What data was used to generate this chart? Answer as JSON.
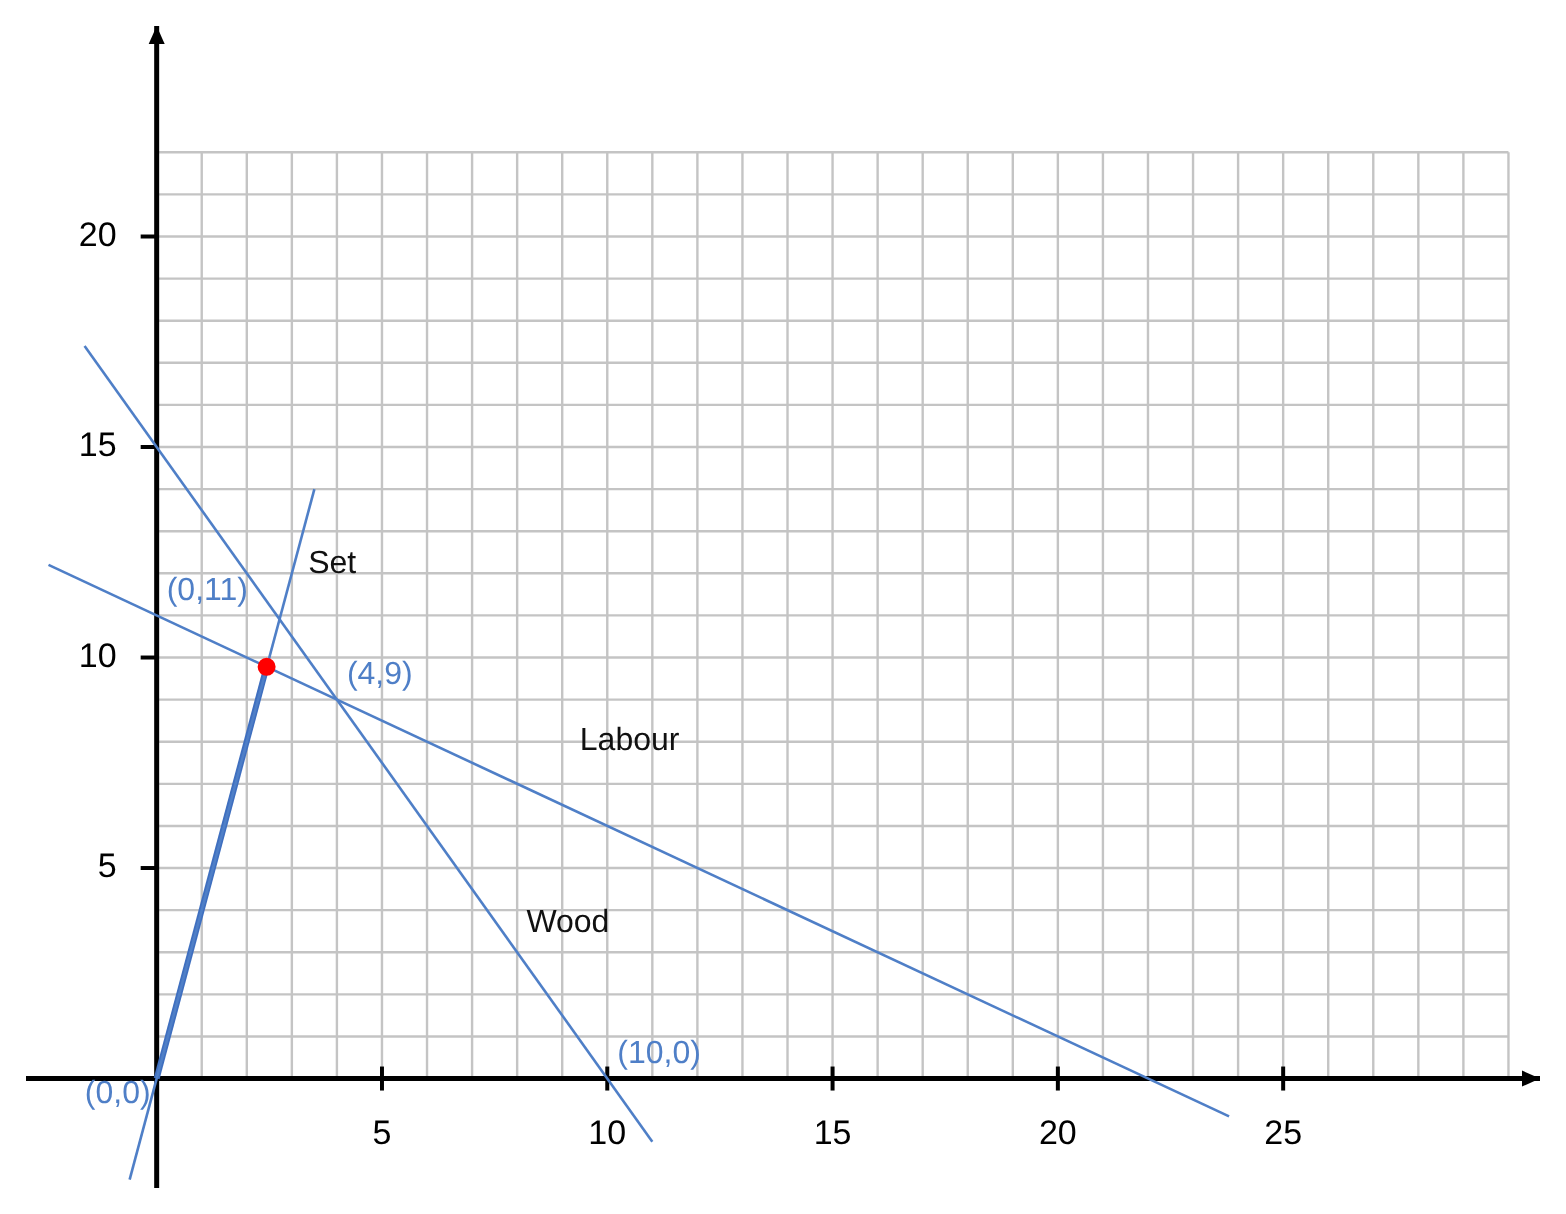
{
  "chart_data": {
    "type": "line",
    "series": [
      {
        "name": "Labour",
        "color": "#4f7fc7",
        "x": [
          -2.4,
          23.8
        ],
        "values": [
          12.2,
          -0.9
        ]
      },
      {
        "name": "Wood",
        "color": "#4f7fc7",
        "x": [
          -1.6,
          11
        ],
        "values": [
          17.4,
          -1.5
        ]
      },
      {
        "name": "Set",
        "color": "#4f7fc7",
        "x": [
          -0.6,
          3.5
        ],
        "values": [
          -2.4,
          14
        ]
      },
      {
        "color": "#3f6fbf",
        "x": [
          0,
          2.44
        ],
        "values": [
          0,
          9.78
        ]
      },
      {
        "type": "scatter",
        "marker": "circle",
        "color": "#ff0000",
        "x": [
          2.44
        ],
        "values": [
          9.78
        ]
      }
    ],
    "annotations": [
      {
        "text": "(0,11)",
        "x": 0,
        "y": 11
      },
      {
        "text": "(4,9)",
        "x": 4,
        "y": 9
      },
      {
        "text": "(10,0)",
        "x": 10,
        "y": 0
      },
      {
        "text": "(0,0)",
        "x": 0,
        "y": 0
      }
    ],
    "xlim": [
      -2.9,
      30.7
    ],
    "ylim": [
      -2.6,
      25
    ],
    "xticks": [
      {
        "value": 0,
        "label": null
      },
      {
        "value": 1,
        "label": null
      },
      {
        "value": 2,
        "label": null
      },
      {
        "value": 3,
        "label": null
      },
      {
        "value": 4,
        "label": null
      },
      5,
      {
        "value": 6,
        "label": null
      },
      {
        "value": 7,
        "label": null
      },
      {
        "value": 8,
        "label": null
      },
      {
        "value": 9,
        "label": null
      },
      10,
      {
        "value": 11,
        "label": null
      },
      {
        "value": 12,
        "label": null
      },
      {
        "value": 13,
        "label": null
      },
      {
        "value": 14,
        "label": null
      },
      15,
      {
        "value": 16,
        "label": null
      },
      {
        "value": 17,
        "label": null
      },
      {
        "value": 18,
        "label": null
      },
      {
        "value": 19,
        "label": null
      },
      20,
      {
        "value": 21,
        "label": null
      },
      {
        "value": 22,
        "label": null
      },
      {
        "value": 23,
        "label": null
      },
      {
        "value": 24,
        "label": null
      },
      25,
      {
        "value": 26,
        "label": null
      },
      {
        "value": 27,
        "label": null
      },
      {
        "value": 28,
        "label": null
      },
      {
        "value": 29,
        "label": null
      },
      {
        "value": 30,
        "label": null
      }
    ],
    "yticks": [
      {
        "value": 0,
        "label": null
      },
      {
        "value": 1,
        "label": null
      },
      {
        "value": 2,
        "label": null
      },
      {
        "value": 3,
        "label": null
      },
      {
        "value": 4,
        "label": null
      },
      5,
      {
        "value": 6,
        "label": null
      },
      {
        "value": 7,
        "label": null
      },
      {
        "value": 8,
        "label": null
      },
      {
        "value": 9,
        "label": null
      },
      10,
      {
        "value": 11,
        "label": null
      },
      {
        "value": 12,
        "label": null
      },
      {
        "value": 13,
        "label": null
      },
      {
        "value": 14,
        "label": null
      },
      15,
      {
        "value": 16,
        "label": null
      },
      {
        "value": 17,
        "label": null
      },
      {
        "value": 18,
        "label": null
      },
      {
        "value": 19,
        "label": null
      },
      20,
      {
        "value": 21,
        "label": null
      },
      {
        "value": 22,
        "label": null
      }
    ],
    "grid": true,
    "legend": false,
    "line_style": "solid"
  }
}
